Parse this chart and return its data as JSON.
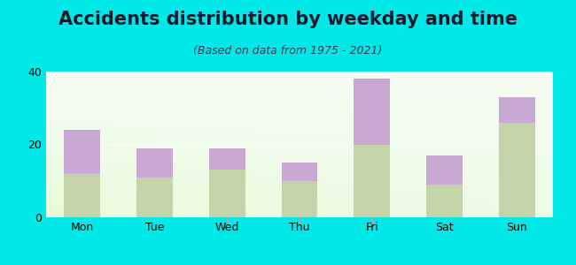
{
  "title": "Accidents distribution by weekday and time",
  "subtitle": "(Based on data from 1975 - 2021)",
  "categories": [
    "Mon",
    "Tue",
    "Wed",
    "Thu",
    "Fri",
    "Sat",
    "Sun"
  ],
  "pm_values": [
    12,
    11,
    13,
    10,
    20,
    9,
    26
  ],
  "am_values": [
    12,
    8,
    6,
    5,
    18,
    8,
    7
  ],
  "am_color": "#c9a8d4",
  "pm_color": "#c5d4a8",
  "ylim": [
    0,
    40
  ],
  "yticks": [
    0,
    20,
    40
  ],
  "background_color": "#00e8e8",
  "bar_width": 0.5,
  "title_fontsize": 15,
  "subtitle_fontsize": 9,
  "tick_fontsize": 9,
  "legend_fontsize": 9
}
